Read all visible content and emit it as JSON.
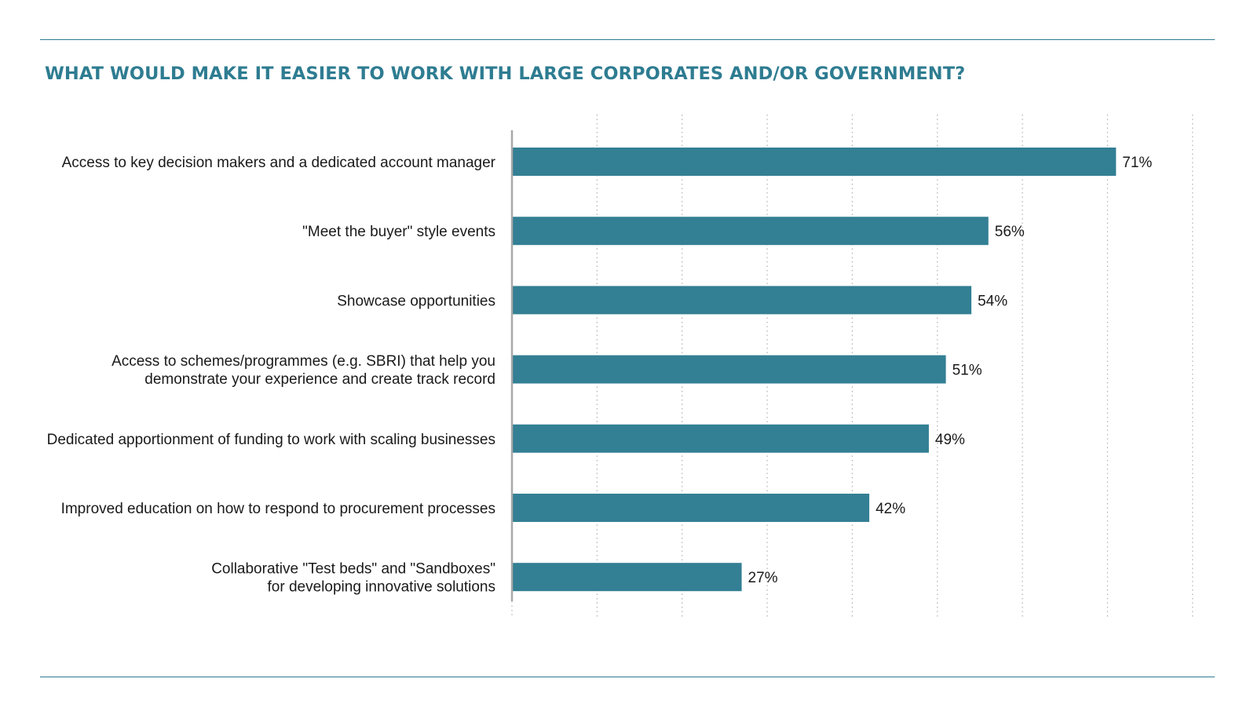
{
  "header": {
    "title": "WHAT WOULD MAKE IT EASIER TO WORK WITH LARGE CORPORATES AND/OR GOVERNMENT?"
  },
  "colors": {
    "accent": "#2e7c91",
    "bar": "#337f94",
    "text": "#1a1a1a",
    "grid": "#b0b0b0",
    "axis": "#a8a8a8"
  },
  "chart_data": {
    "type": "bar",
    "orientation": "horizontal",
    "title": "WHAT WOULD MAKE IT EASIER TO WORK WITH LARGE CORPORATES AND/OR GOVERNMENT?",
    "xlabel": "",
    "ylabel": "",
    "xlim": [
      0,
      80
    ],
    "grid": true,
    "legend": "none",
    "categories": [
      [
        "Access to key decision makers and a dedicated account manager"
      ],
      [
        "\"Meet the buyer\" style events"
      ],
      [
        "Showcase opportunities"
      ],
      [
        "Access to schemes/programmes (e.g. SBRI) that help you",
        "demonstrate your experience and create track record"
      ],
      [
        "Dedicated apportionment of funding to work with scaling businesses"
      ],
      [
        "Improved education on how to respond to procurement processes"
      ],
      [
        "Collaborative \"Test beds\" and \"Sandboxes\"",
        "for developing innovative solutions"
      ]
    ],
    "values": [
      71,
      56,
      54,
      51,
      49,
      42,
      27
    ],
    "value_labels": [
      "71%",
      "56%",
      "54%",
      "51%",
      "49%",
      "42%",
      "27%"
    ]
  }
}
